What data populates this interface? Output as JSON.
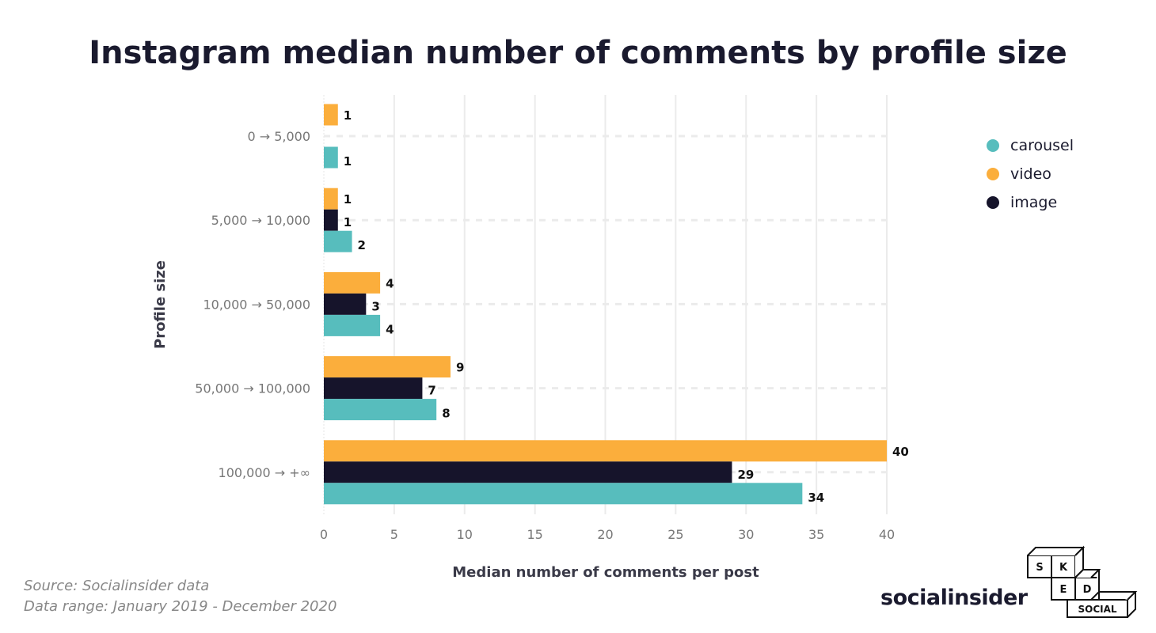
{
  "title": "Instagram median number of comments by profile size",
  "colors": {
    "carousel": "#57bdbd",
    "video": "#fbae3c",
    "image": "#16142b"
  },
  "chart_data": {
    "type": "bar",
    "orientation": "horizontal",
    "title": "Instagram median number of comments by profile size",
    "xlabel": "Median number of comments per post",
    "ylabel": "Profile size",
    "xlim": [
      0,
      40
    ],
    "xticks": [
      0,
      5,
      10,
      15,
      20,
      25,
      30,
      35,
      40
    ],
    "grid": true,
    "legend_position": "right",
    "categories": [
      "0 → 5,000",
      "5,000 → 10,000",
      "10,000 → 50,000",
      "50,000 → 100,000",
      "100,000 → +∞"
    ],
    "series": [
      {
        "name": "video",
        "values": [
          1,
          1,
          4,
          9,
          40
        ]
      },
      {
        "name": "image",
        "values": [
          null,
          1,
          3,
          7,
          29
        ]
      },
      {
        "name": "carousel",
        "values": [
          1,
          2,
          4,
          8,
          34
        ]
      }
    ]
  },
  "legend": [
    "carousel",
    "video",
    "image"
  ],
  "source": "Source: Socialinsider data",
  "range": "Data range: January 2019 - December 2020",
  "logos": {
    "socialinsider": "socialinsider",
    "sked": [
      "S",
      "K",
      "E",
      "D",
      "SOCIAL"
    ]
  }
}
